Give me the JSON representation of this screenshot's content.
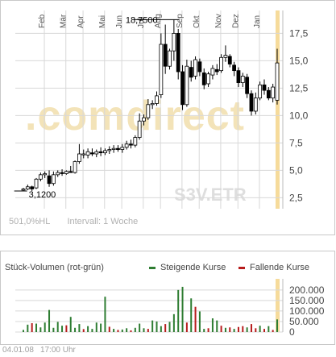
{
  "price_chart": {
    "months": [
      "Feb",
      "Mär",
      "Apr",
      "Mai",
      "Jun",
      "Jul",
      "Aug",
      "Sep",
      "Okt",
      "Nov",
      "Dez",
      "Jan"
    ],
    "ytick_labels": [
      "17,5",
      "15,0",
      "12,5",
      "10,0",
      "7,5",
      "5,0",
      "2,5"
    ],
    "max_label": "18,7500",
    "min_label": "3,1200",
    "watermark": ".comdirect",
    "symbol": "S3V.ETR",
    "stat": "501,0%HL",
    "interval": "Intervall: 1 Woche"
  },
  "volume_chart": {
    "title": "Stück-Volumen (rot-grün)",
    "legend_up": "Steigende Kurse",
    "legend_down": "Fallende Kurse",
    "ytick_labels": [
      "200.000",
      "150.000",
      "100.000",
      "50.000",
      "0"
    ]
  },
  "footer": {
    "date": "04.01.08",
    "time": "17:00 Uhr"
  },
  "colors": {
    "up": "#2e7d32",
    "down": "#b71c1c",
    "highlight": "#f5d58a",
    "grid": "#d8d8d8"
  },
  "chart_data": [
    {
      "type": "candlestick",
      "title": "",
      "xlabel": "",
      "ylabel": "",
      "ylim": [
        1.5,
        19
      ],
      "yticks": [
        2.5,
        5.0,
        7.5,
        10.0,
        12.5,
        15.0,
        17.5
      ],
      "annotations": [
        {
          "text": "18,7500",
          "value": 18.75
        },
        {
          "text": "3,1200",
          "value": 3.12
        }
      ],
      "series": [
        {
          "o": 3.2,
          "h": 3.4,
          "l": 3.1,
          "c": 3.3
        },
        {
          "o": 3.3,
          "h": 3.7,
          "l": 3.2,
          "c": 3.5
        },
        {
          "o": 3.5,
          "h": 3.6,
          "l": 3.1,
          "c": 3.3
        },
        {
          "o": 3.4,
          "h": 4.3,
          "l": 3.3,
          "c": 4.2
        },
        {
          "o": 4.2,
          "h": 4.8,
          "l": 4.0,
          "c": 4.6
        },
        {
          "o": 4.6,
          "h": 4.9,
          "l": 4.3,
          "c": 4.7
        },
        {
          "o": 4.5,
          "h": 5.0,
          "l": 3.5,
          "c": 3.8
        },
        {
          "o": 3.8,
          "h": 4.9,
          "l": 3.6,
          "c": 4.6
        },
        {
          "o": 4.6,
          "h": 5.0,
          "l": 4.4,
          "c": 4.8
        },
        {
          "o": 4.8,
          "h": 5.1,
          "l": 4.5,
          "c": 4.7
        },
        {
          "o": 4.7,
          "h": 5.0,
          "l": 4.6,
          "c": 4.9
        },
        {
          "o": 4.9,
          "h": 5.4,
          "l": 4.8,
          "c": 4.8
        },
        {
          "o": 4.8,
          "h": 5.9,
          "l": 4.7,
          "c": 5.8
        },
        {
          "o": 5.8,
          "h": 7.4,
          "l": 5.6,
          "c": 6.5
        },
        {
          "o": 6.5,
          "h": 6.9,
          "l": 6.1,
          "c": 6.5
        },
        {
          "o": 6.4,
          "h": 7.0,
          "l": 6.1,
          "c": 6.7
        },
        {
          "o": 6.6,
          "h": 7.0,
          "l": 6.3,
          "c": 6.5
        },
        {
          "o": 6.5,
          "h": 6.9,
          "l": 6.2,
          "c": 6.7
        },
        {
          "o": 6.7,
          "h": 7.1,
          "l": 6.3,
          "c": 6.6
        },
        {
          "o": 6.6,
          "h": 7.0,
          "l": 6.4,
          "c": 6.8
        },
        {
          "o": 6.8,
          "h": 7.2,
          "l": 6.5,
          "c": 6.9
        },
        {
          "o": 6.9,
          "h": 7.3,
          "l": 6.6,
          "c": 7.0
        },
        {
          "o": 7.0,
          "h": 7.3,
          "l": 6.7,
          "c": 6.9
        },
        {
          "o": 6.9,
          "h": 7.4,
          "l": 6.6,
          "c": 7.1
        },
        {
          "o": 7.1,
          "h": 7.7,
          "l": 6.9,
          "c": 7.4
        },
        {
          "o": 7.4,
          "h": 7.8,
          "l": 7.0,
          "c": 7.3
        },
        {
          "o": 7.3,
          "h": 8.2,
          "l": 7.1,
          "c": 8.0
        },
        {
          "o": 8.0,
          "h": 10.2,
          "l": 7.8,
          "c": 9.5
        },
        {
          "o": 9.5,
          "h": 10.1,
          "l": 9.1,
          "c": 9.8
        },
        {
          "o": 9.8,
          "h": 11.5,
          "l": 9.6,
          "c": 11.0
        },
        {
          "o": 11.0,
          "h": 11.4,
          "l": 10.6,
          "c": 11.1
        },
        {
          "o": 11.1,
          "h": 12.2,
          "l": 10.9,
          "c": 11.8
        },
        {
          "o": 11.9,
          "h": 17.5,
          "l": 11.6,
          "c": 16.5
        },
        {
          "o": 16.5,
          "h": 18.3,
          "l": 13.8,
          "c": 14.5
        },
        {
          "o": 14.5,
          "h": 16.1,
          "l": 14.2,
          "c": 15.9
        },
        {
          "o": 15.9,
          "h": 18.75,
          "l": 15.0,
          "c": 17.5
        },
        {
          "o": 17.5,
          "h": 17.9,
          "l": 13.3,
          "c": 14.0
        },
        {
          "o": 14.0,
          "h": 14.6,
          "l": 10.5,
          "c": 11.0
        },
        {
          "o": 11.0,
          "h": 15.1,
          "l": 10.8,
          "c": 14.5
        },
        {
          "o": 14.4,
          "h": 15.0,
          "l": 13.1,
          "c": 13.5
        },
        {
          "o": 13.6,
          "h": 15.4,
          "l": 13.3,
          "c": 15.1
        },
        {
          "o": 14.9,
          "h": 15.2,
          "l": 13.6,
          "c": 14.0
        },
        {
          "o": 13.9,
          "h": 14.3,
          "l": 12.4,
          "c": 12.8
        },
        {
          "o": 12.9,
          "h": 14.0,
          "l": 12.6,
          "c": 13.8
        },
        {
          "o": 13.7,
          "h": 14.6,
          "l": 13.3,
          "c": 14.3
        },
        {
          "o": 14.2,
          "h": 14.7,
          "l": 13.7,
          "c": 14.0
        },
        {
          "o": 14.1,
          "h": 15.6,
          "l": 13.9,
          "c": 15.3
        },
        {
          "o": 15.3,
          "h": 16.4,
          "l": 14.9,
          "c": 15.5
        },
        {
          "o": 15.4,
          "h": 15.6,
          "l": 14.4,
          "c": 14.7
        },
        {
          "o": 14.6,
          "h": 14.9,
          "l": 13.6,
          "c": 14.1
        },
        {
          "o": 14.1,
          "h": 14.4,
          "l": 12.6,
          "c": 13.0
        },
        {
          "o": 13.0,
          "h": 13.9,
          "l": 12.6,
          "c": 13.6
        },
        {
          "o": 13.5,
          "h": 13.8,
          "l": 11.6,
          "c": 12.0
        },
        {
          "o": 12.0,
          "h": 12.3,
          "l": 10.0,
          "c": 10.4
        },
        {
          "o": 10.4,
          "h": 12.1,
          "l": 10.1,
          "c": 11.6
        },
        {
          "o": 11.6,
          "h": 13.1,
          "l": 11.4,
          "c": 12.8
        },
        {
          "o": 12.8,
          "h": 13.3,
          "l": 11.9,
          "c": 12.3
        },
        {
          "o": 12.3,
          "h": 12.6,
          "l": 11.4,
          "c": 11.6
        },
        {
          "o": 11.6,
          "h": 12.9,
          "l": 11.2,
          "c": 12.6
        },
        {
          "o": 11.4,
          "h": 16.1,
          "l": 11.0,
          "c": 14.8
        }
      ]
    },
    {
      "type": "bar",
      "title": "",
      "ylabel": "",
      "ylim": [
        0,
        230000
      ],
      "yticks": [
        0,
        50000,
        100000,
        150000,
        200000
      ],
      "values": [
        10000,
        35000,
        42000,
        40000,
        22000,
        45000,
        105000,
        20000,
        48000,
        30000,
        32000,
        72000,
        20000,
        38000,
        14000,
        28000,
        15000,
        45000,
        40000,
        168000,
        25000,
        15000,
        10000,
        12000,
        18000,
        8000,
        20000,
        40000,
        18000,
        15000,
        55000,
        50000,
        28000,
        38000,
        48000,
        85000,
        200000,
        215000,
        45000,
        160000,
        120000,
        98000,
        15000,
        18000,
        65000,
        55000,
        30000,
        20000,
        22000,
        15000,
        24000,
        28000,
        22000,
        38000,
        18000,
        30000,
        15000,
        28000,
        10000,
        60000
      ],
      "directions": [
        "up",
        "up",
        "down",
        "up",
        "up",
        "up",
        "up",
        "up",
        "up",
        "up",
        "down",
        "up",
        "up",
        "up",
        "down",
        "up",
        "up",
        "up",
        "up",
        "up",
        "down",
        "up",
        "down",
        "up",
        "up",
        "down",
        "up",
        "up",
        "up",
        "down",
        "up",
        "up",
        "up",
        "down",
        "up",
        "up",
        "up",
        "up",
        "down",
        "up",
        "down",
        "up",
        "up",
        "down",
        "up",
        "up",
        "down",
        "up",
        "down",
        "up",
        "down",
        "down",
        "up",
        "down",
        "down",
        "up",
        "down",
        "up",
        "down",
        "up"
      ]
    }
  ]
}
